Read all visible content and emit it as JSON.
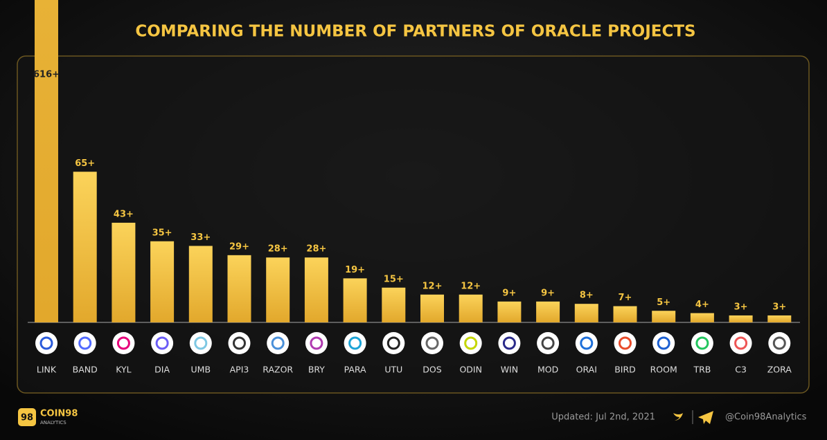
{
  "chart_data": {
    "type": "bar",
    "title": "COMPARING THE NUMBER OF PARTNERS OF ORACLE PROJECTS",
    "categories": [
      "LINK",
      "BAND",
      "KYL",
      "DIA",
      "UMB",
      "API3",
      "RAZOR",
      "BRY",
      "PARA",
      "UTU",
      "DOS",
      "ODIN",
      "WIN",
      "MOD",
      "ORAI",
      "BIRD",
      "ROOM",
      "TRB",
      "C3",
      "ZORA"
    ],
    "values": [
      616,
      65,
      43,
      35,
      33,
      29,
      28,
      28,
      19,
      15,
      12,
      12,
      9,
      9,
      8,
      7,
      5,
      4,
      3,
      3
    ],
    "value_labels": [
      "616+",
      "65+",
      "43+",
      "35+",
      "33+",
      "29+",
      "28+",
      "28+",
      "19+",
      "15+",
      "12+",
      "12+",
      "9+",
      "9+",
      "8+",
      "7+",
      "5+",
      "4+",
      "3+",
      "3+"
    ],
    "color": "#f4c242"
  },
  "footer": {
    "brand": "COIN98",
    "brand_sub": "ANALYTICS",
    "logo": "98",
    "updated": "Updated: Jul 2nd, 2021",
    "handle": "@Coin98Analytics"
  }
}
